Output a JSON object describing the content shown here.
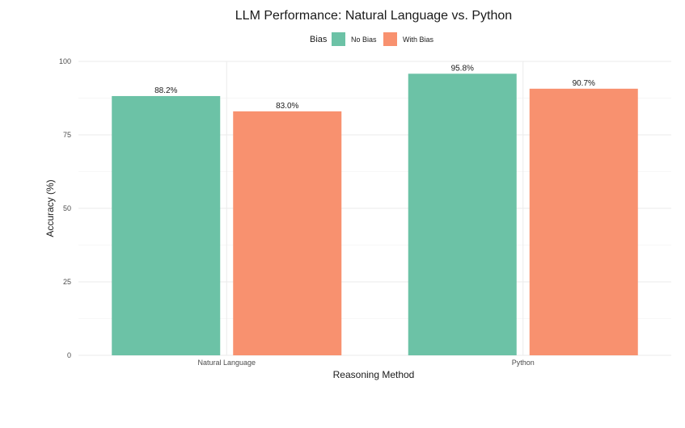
{
  "chart_data": {
    "type": "bar",
    "title": "LLM Performance: Natural Language vs. Python",
    "xlabel": "Reasoning Method",
    "ylabel": "Accuracy (%)",
    "categories": [
      "Natural Language",
      "Python"
    ],
    "series": [
      {
        "name": "No Bias",
        "values": [
          88.2,
          95.8
        ],
        "color": "#6CC2A6",
        "labels": [
          "88.2%",
          "95.8%"
        ]
      },
      {
        "name": "With Bias",
        "values": [
          83.0,
          90.7
        ],
        "color": "#F8916F",
        "labels": [
          "83.0%",
          "90.7%"
        ]
      }
    ],
    "ylim": [
      0,
      100
    ],
    "yticks": [
      0,
      25,
      50,
      75,
      100
    ],
    "legend": {
      "title": "Bias",
      "position": "top"
    },
    "grid": true
  }
}
